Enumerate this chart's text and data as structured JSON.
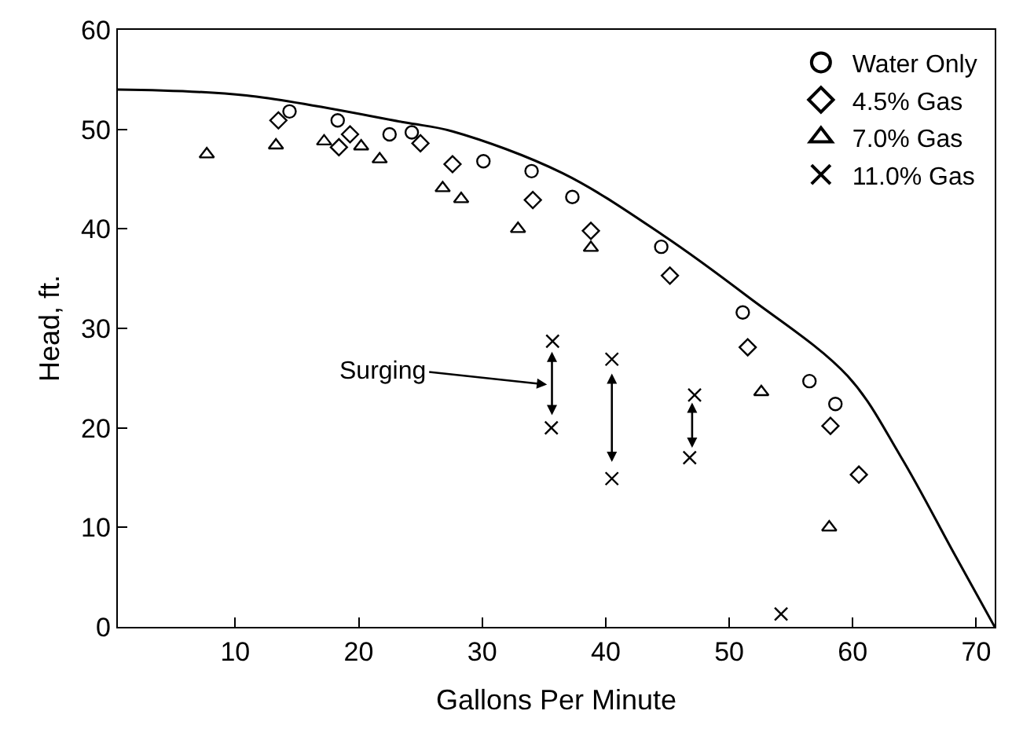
{
  "chart_data": {
    "type": "scatter",
    "xlabel": "Gallons Per Minute",
    "ylabel": "Head, ft.",
    "xlim": [
      0.5,
      71.5
    ],
    "ylim": [
      0,
      60
    ],
    "xticks": [
      10,
      20,
      30,
      40,
      50,
      60,
      70
    ],
    "yticks": [
      0,
      10,
      20,
      30,
      40,
      50,
      60
    ],
    "legend": "top right",
    "annotations": [
      "Surging"
    ],
    "series": [
      {
        "name": "Water Only",
        "color": "#000000",
        "marker": "circle",
        "x": [
          14.4,
          18.3,
          22.5,
          24.3,
          30.1,
          34,
          37.3,
          44.5,
          51.1,
          56.5,
          58.6
        ],
        "values": [
          51.8,
          50.9,
          49.5,
          49.7,
          46.8,
          45.8,
          43.2,
          38.2,
          31.6,
          24.7,
          22.4
        ]
      },
      {
        "name": "4.5% Gas",
        "color": "#000000",
        "marker": "diamond",
        "x": [
          13.5,
          19.3,
          18.4,
          25,
          27.6,
          34.1,
          38.8,
          45.2,
          51.5,
          58.2,
          60.5
        ],
        "values": [
          50.9,
          49.5,
          48.2,
          48.6,
          46.5,
          42.9,
          39.8,
          35.3,
          28.1,
          20.2,
          15.3
        ]
      },
      {
        "name": "7.0% Gas",
        "color": "#000000",
        "marker": "triangle",
        "x": [
          7.7,
          13.3,
          17.2,
          20.2,
          21.7,
          26.8,
          28.3,
          32.9,
          38.8,
          52.6,
          58.1
        ],
        "values": [
          47.5,
          48.4,
          48.8,
          48.3,
          47,
          44.1,
          43,
          40,
          38.1,
          23.6,
          10
        ]
      },
      {
        "name": "11.0% Gas",
        "color": "#000000",
        "marker": "cross",
        "x": [
          35.7,
          35.6,
          40.5,
          40.5,
          47.2,
          46.8,
          54.2
        ],
        "values": [
          28.7,
          20,
          26.9,
          14.9,
          23.3,
          17,
          1.3
        ]
      },
      {
        "type": "line",
        "color": "#000000",
        "marker": "none",
        "x": [
          0.5,
          10.9,
          23.7,
          27.6,
          36.5,
          44.6,
          51.5,
          59.6,
          63.9,
          68.2,
          71.5
        ],
        "values": [
          54,
          53.4,
          50.7,
          49.8,
          45.6,
          39.4,
          33.2,
          25.2,
          17.1,
          7.4,
          0
        ]
      }
    ]
  }
}
